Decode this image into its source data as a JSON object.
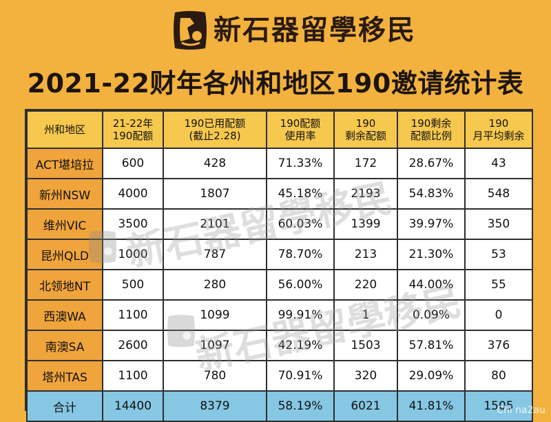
{
  "header": {
    "brand_name": "新石器留學移民",
    "title": "2021-22财年各州和地区190邀请统计表"
  },
  "table": {
    "columns": [
      [
        "州和地区"
      ],
      [
        "21-22年",
        "190配额"
      ],
      [
        "190已用配额",
        "(截止2.28)"
      ],
      [
        "190配额",
        "使用率"
      ],
      [
        "190",
        "剩余配额"
      ],
      [
        "190剩余",
        "配额比例"
      ],
      [
        "190",
        "月平均剩余"
      ]
    ],
    "rows": [
      [
        "ACT堪培拉",
        "600",
        "428",
        "71.33%",
        "172",
        "28.67%",
        "43"
      ],
      [
        "新州NSW",
        "4000",
        "1807",
        "45.18%",
        "2193",
        "54.83%",
        "548"
      ],
      [
        "维州VIC",
        "3500",
        "2101",
        "60.03%",
        "1399",
        "39.97%",
        "350"
      ],
      [
        "昆州QLD",
        "1000",
        "787",
        "78.70%",
        "213",
        "21.30%",
        "53"
      ],
      [
        "北领地NT",
        "500",
        "280",
        "56.00%",
        "220",
        "44.00%",
        "55"
      ],
      [
        "西澳WA",
        "1100",
        "1099",
        "99.91%",
        "1",
        "0.09%",
        "0"
      ],
      [
        "南澳SA",
        "2600",
        "1097",
        "42.19%",
        "1503",
        "57.81%",
        "376"
      ],
      [
        "塔州TAS",
        "1100",
        "780",
        "70.91%",
        "320",
        "29.09%",
        "80"
      ]
    ],
    "total": [
      "合计",
      "14400",
      "8379",
      "58.19%",
      "6021",
      "41.81%",
      "1505"
    ]
  },
  "watermarks": {
    "line_1": "新石器留學移民",
    "line_2": "新石器留學移民",
    "corner": "Chi na2au"
  },
  "colors": {
    "background": "#f3b23e",
    "header_row": "#f6c84e",
    "region_column": "#f0a43c",
    "total_row": "#86c7e4",
    "border": "#2e2e2e"
  },
  "icons": {
    "brand_logo": "brand-logo-icon"
  }
}
